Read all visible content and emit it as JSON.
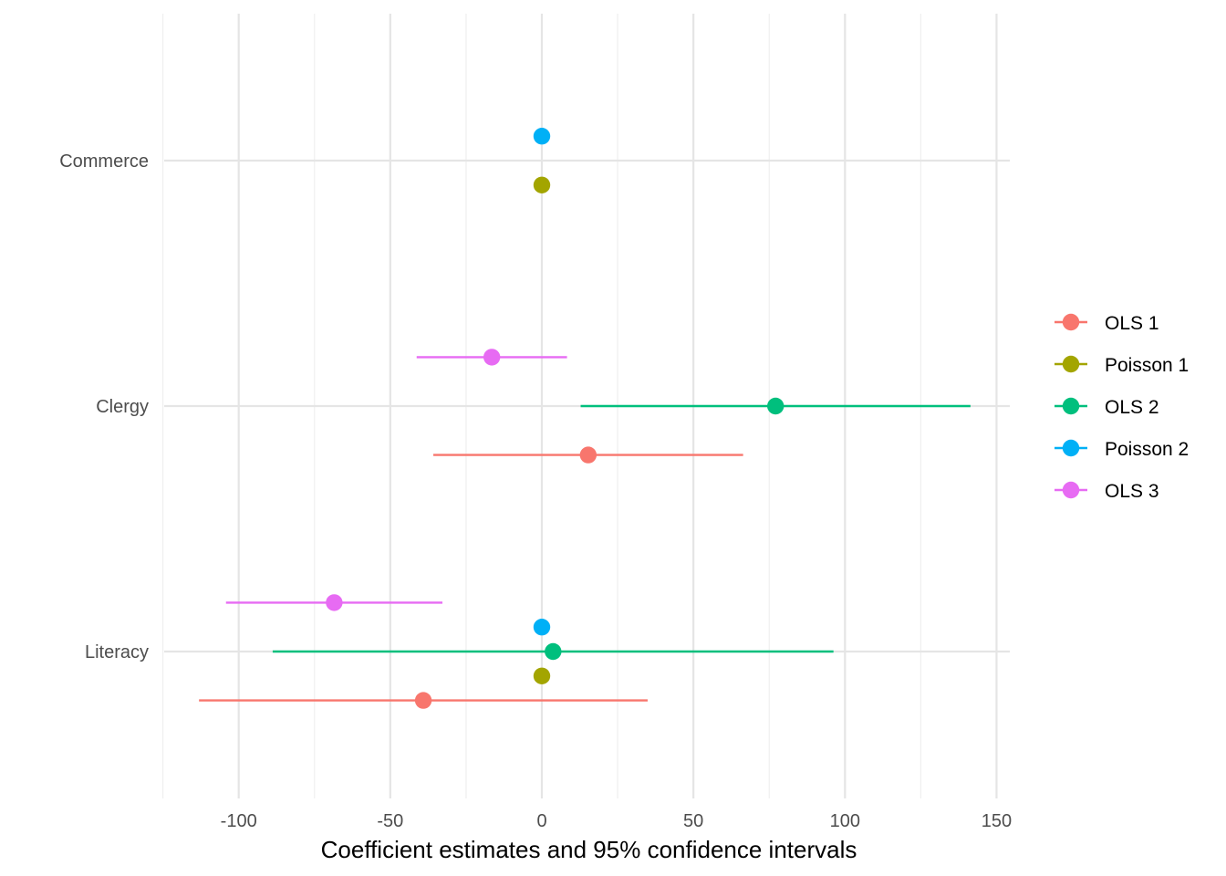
{
  "chart_data": {
    "type": "scatter",
    "subtype": "coefficient-plot",
    "title": "",
    "xlabel": "Coefficient estimates and 95% confidence intervals",
    "ylabel": "",
    "xlim": [
      -125,
      154
    ],
    "x_ticks": [
      -100,
      -50,
      0,
      50,
      100,
      150
    ],
    "x_tick_labels": [
      "-100",
      "-50",
      "0",
      "50",
      "100",
      "150"
    ],
    "categories": [
      "Commerce",
      "Clergy",
      "Literacy"
    ],
    "grid": true,
    "legend_position": "right",
    "series": [
      {
        "name": "OLS 1",
        "color": "#F8766D",
        "points": [
          {
            "term": "Literacy",
            "estimate": -39.1,
            "conf_low": -113.1,
            "conf_high": 34.9
          },
          {
            "term": "Clergy",
            "estimate": 15.3,
            "conf_low": -35.8,
            "conf_high": 66.4
          }
        ]
      },
      {
        "name": "Poisson 1",
        "color": "#A3A500",
        "points": [
          {
            "term": "Literacy",
            "estimate": 0.0,
            "conf_low": 0.0,
            "conf_high": 0.0
          },
          {
            "term": "Commerce",
            "estimate": 0.0,
            "conf_low": 0.0,
            "conf_high": 0.0
          }
        ]
      },
      {
        "name": "OLS 2",
        "color": "#00BF7D",
        "points": [
          {
            "term": "Literacy",
            "estimate": 3.7,
            "conf_low": -88.8,
            "conf_high": 96.2
          },
          {
            "term": "Clergy",
            "estimate": 77.1,
            "conf_low": 12.8,
            "conf_high": 141.4
          }
        ]
      },
      {
        "name": "Poisson 2",
        "color": "#00B0F6",
        "points": [
          {
            "term": "Literacy",
            "estimate": 0.0,
            "conf_low": 0.0,
            "conf_high": 0.0
          },
          {
            "term": "Commerce",
            "estimate": 0.0,
            "conf_low": 0.0,
            "conf_high": 0.0
          }
        ]
      },
      {
        "name": "OLS 3",
        "color": "#E76BF3",
        "points": [
          {
            "term": "Literacy",
            "estimate": -68.5,
            "conf_low": -104.2,
            "conf_high": -32.8
          },
          {
            "term": "Clergy",
            "estimate": -16.5,
            "conf_low": -41.3,
            "conf_high": 8.3
          }
        ]
      }
    ]
  }
}
